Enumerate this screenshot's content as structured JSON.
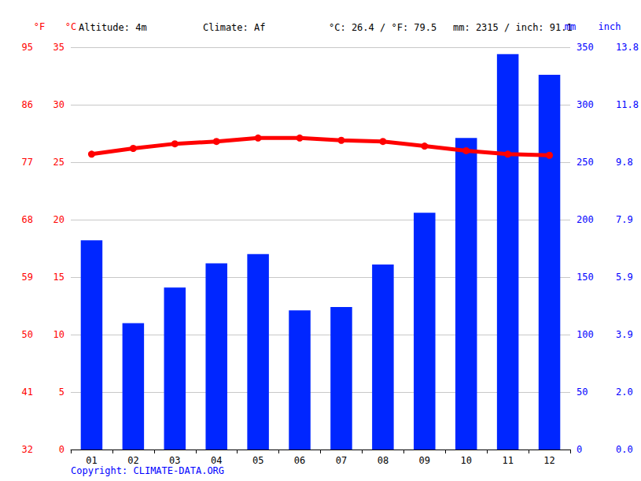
{
  "chart_data": {
    "type": "bar",
    "annotations": [
      "Altitude: 4m",
      "Climate: Af",
      "°C: 26.4 / °F: 79.5",
      "mm: 2315 / inch: 91.1"
    ],
    "footer": "Copyright: CLIMATE-DATA.ORG",
    "categories": [
      "01",
      "02",
      "03",
      "04",
      "05",
      "06",
      "07",
      "08",
      "09",
      "10",
      "11",
      "12"
    ],
    "series": [
      {
        "type": "bar",
        "axis": "y2",
        "color": "#0026ff",
        "values": [
          182,
          110,
          141,
          162,
          170,
          121,
          124,
          161,
          206,
          271,
          344,
          326
        ]
      },
      {
        "type": "line",
        "color": "#ff0000",
        "marker": "circle",
        "values": [
          25.7,
          26.2,
          26.6,
          26.8,
          27.1,
          27.1,
          26.9,
          26.8,
          26.4,
          26.0,
          25.7,
          25.6
        ]
      }
    ],
    "ylabel": "°C",
    "ylim": [
      0,
      35
    ],
    "yticks": [
      0,
      5,
      10,
      15,
      20,
      25,
      30,
      35
    ],
    "y2label": "mm",
    "y2lim": [
      0,
      350
    ],
    "y2ticks": [
      0,
      50,
      100,
      150,
      200,
      250,
      300,
      350
    ],
    "y3label": "°F",
    "y3lim": [
      32,
      95
    ],
    "y3ticks": [
      32,
      41,
      50,
      59,
      68,
      77,
      86,
      95
    ],
    "y4label": "inch",
    "y4lim": [
      0,
      13.78
    ],
    "y4ticks": [
      {
        "value": 0,
        "label": "0.0"
      },
      {
        "value": 1.969,
        "label": "2.0"
      },
      {
        "value": 3.937,
        "label": "3.9"
      },
      {
        "value": 5.906,
        "label": "5.9"
      },
      {
        "value": 7.874,
        "label": "7.9"
      },
      {
        "value": 9.843,
        "label": "9.8"
      },
      {
        "value": 11.811,
        "label": "11.8"
      },
      {
        "value": 13.78,
        "label": "13.8"
      }
    ],
    "grid": true
  }
}
